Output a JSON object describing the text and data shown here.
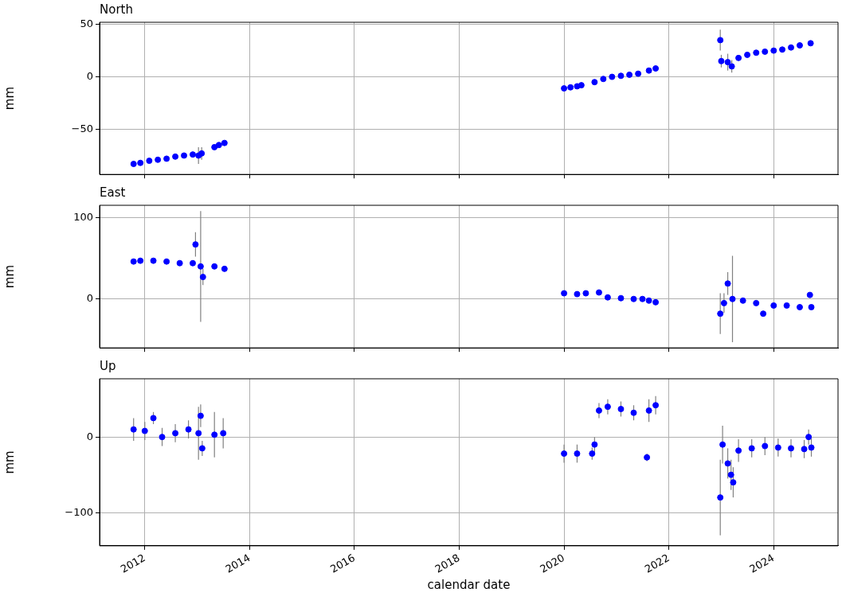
{
  "chart_data": [
    {
      "type": "scatter",
      "title": "North",
      "ylabel": "mm",
      "color": "#0000ff",
      "marker": "circle",
      "grid": true,
      "tick_labels": "y",
      "x": [
        "2011-10-15",
        "2011-12-01",
        "2012-02-01",
        "2012-04-01",
        "2012-06-01",
        "2012-08-01",
        "2012-10-01",
        "2012-12-01",
        "2013-01-10",
        "2013-02-01",
        "2013-05-01",
        "2013-06-01",
        "2013-07-10",
        "2020-01-01",
        "2020-02-15",
        "2020-04-01",
        "2020-05-01",
        "2020-08-01",
        "2020-10-01",
        "2020-12-01",
        "2021-02-01",
        "2021-04-01",
        "2021-06-01",
        "2021-08-15",
        "2021-10-01",
        "2022-12-25",
        "2023-01-01",
        "2023-02-15",
        "2023-03-15",
        "2023-05-01",
        "2023-07-01",
        "2023-09-01",
        "2023-11-01",
        "2024-01-01",
        "2024-03-01",
        "2024-05-01",
        "2024-07-01",
        "2024-09-15"
      ],
      "values": [
        -83,
        -82,
        -80,
        -79,
        -78,
        -76,
        -75,
        -74,
        -75,
        -73,
        -67,
        -65,
        -63,
        -11,
        -10,
        -9,
        -8,
        -5,
        -2,
        0,
        1,
        2,
        3,
        6,
        8,
        35,
        15,
        14,
        10,
        18,
        21,
        23,
        24,
        25,
        26,
        28,
        30,
        32
      ],
      "errors": [
        null,
        null,
        null,
        null,
        null,
        null,
        null,
        null,
        8,
        6,
        null,
        null,
        null,
        null,
        null,
        null,
        null,
        null,
        null,
        null,
        null,
        null,
        null,
        null,
        null,
        10,
        6,
        8,
        6,
        null,
        null,
        null,
        null,
        null,
        null,
        null,
        null,
        null
      ],
      "xlim": [
        "2011-02-20",
        "2025-03-25"
      ],
      "xticks": [
        "2012",
        "2014",
        "2016",
        "2018",
        "2020",
        "2022",
        "2024"
      ],
      "ylim": [
        -93,
        52
      ],
      "yticks": [
        {
          "value": -50,
          "label": "−50"
        },
        0,
        50
      ]
    },
    {
      "type": "scatter",
      "title": "East",
      "ylabel": "mm",
      "color": "#0000ff",
      "marker": "circle",
      "grid": true,
      "tick_labels": "y",
      "x": [
        "2011-10-15",
        "2011-12-01",
        "2012-03-01",
        "2012-06-01",
        "2012-09-01",
        "2012-12-01",
        "2012-12-20",
        "2013-01-25",
        "2013-02-10",
        "2013-05-01",
        "2013-07-10",
        "2020-01-01",
        "2020-04-01",
        "2020-06-01",
        "2020-09-01",
        "2020-11-01",
        "2021-02-01",
        "2021-05-01",
        "2021-07-01",
        "2021-08-15",
        "2021-10-01",
        "2022-12-25",
        "2023-01-20",
        "2023-02-15",
        "2023-03-20",
        "2023-06-01",
        "2023-09-01",
        "2023-10-20",
        "2024-01-01",
        "2024-04-01",
        "2024-07-01",
        "2024-09-10",
        "2024-09-20"
      ],
      "values": [
        46,
        47,
        47,
        46,
        44,
        44,
        67,
        40,
        27,
        40,
        37,
        7,
        6,
        7,
        8,
        2,
        1,
        0,
        0,
        -2,
        -4,
        -18,
        -5,
        19,
        0,
        -2,
        -5,
        -18,
        -8,
        -8,
        -10,
        5,
        -10
      ],
      "errors": [
        null,
        null,
        null,
        null,
        null,
        null,
        15,
        68,
        10,
        null,
        null,
        null,
        null,
        null,
        null,
        null,
        null,
        null,
        null,
        null,
        null,
        25,
        12,
        14,
        53,
        null,
        null,
        null,
        null,
        null,
        null,
        null,
        null
      ],
      "xlim": [
        "2011-02-20",
        "2025-03-25"
      ],
      "xticks": [
        "2012",
        "2014",
        "2016",
        "2018",
        "2020",
        "2022",
        "2024"
      ],
      "ylim": [
        -60,
        115
      ],
      "yticks": [
        0,
        100
      ]
    },
    {
      "type": "scatter",
      "title": "Up",
      "ylabel": "mm",
      "xlabel": "calendar date",
      "color": "#0000ff",
      "marker": "circle",
      "grid": true,
      "x": [
        "2011-10-15",
        "2012-01-01",
        "2012-03-01",
        "2012-05-01",
        "2012-08-01",
        "2012-11-01",
        "2013-01-10",
        "2013-01-25",
        "2013-02-05",
        "2013-05-01",
        "2013-07-01",
        "2020-01-01",
        "2020-04-01",
        "2020-07-15",
        "2020-08-01",
        "2020-09-01",
        "2020-11-01",
        "2021-02-01",
        "2021-05-01",
        "2021-08-01",
        "2021-08-15",
        "2021-10-01",
        "2022-12-25",
        "2023-01-10",
        "2023-02-15",
        "2023-03-10",
        "2023-03-25",
        "2023-05-01",
        "2023-08-01",
        "2023-11-01",
        "2024-02-01",
        "2024-05-01",
        "2024-08-01",
        "2024-09-01",
        "2024-09-20"
      ],
      "values": [
        10,
        8,
        25,
        0,
        5,
        10,
        5,
        28,
        -15,
        3,
        5,
        -22,
        -22,
        -22,
        -10,
        35,
        40,
        37,
        32,
        -27,
        35,
        42,
        -80,
        -10,
        -35,
        -50,
        -60,
        -18,
        -15,
        -12,
        -14,
        -15,
        -16,
        0,
        -14
      ],
      "errors": [
        15,
        12,
        8,
        12,
        12,
        12,
        35,
        15,
        10,
        30,
        20,
        12,
        12,
        8,
        10,
        10,
        10,
        10,
        10,
        5,
        15,
        12,
        50,
        25,
        20,
        20,
        20,
        15,
        12,
        12,
        12,
        12,
        12,
        10,
        12
      ],
      "xlim": [
        "2011-02-20",
        "2025-03-25"
      ],
      "xticks": [
        "2012",
        "2014",
        "2016",
        "2018",
        "2020",
        "2022",
        "2024"
      ],
      "ylim": [
        -144,
        77
      ],
      "yticks": [
        {
          "value": -100,
          "label": "−100"
        },
        0
      ]
    }
  ]
}
